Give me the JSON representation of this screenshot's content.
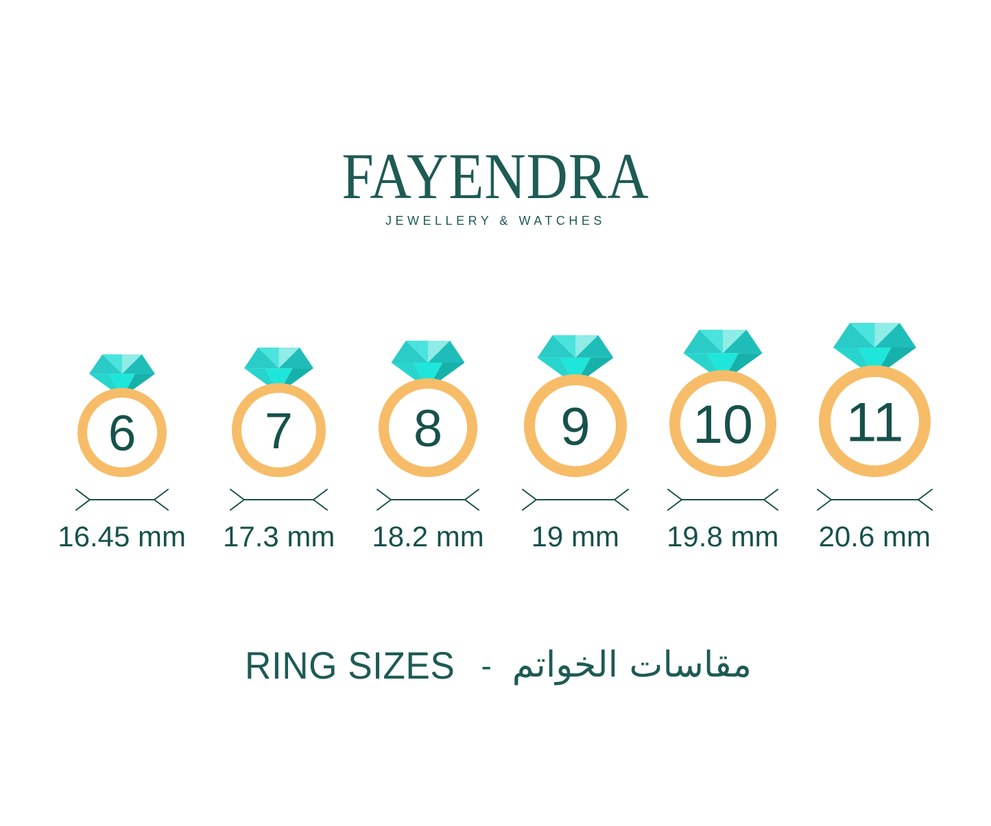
{
  "brand": {
    "name": "FAYENDRA",
    "tagline": "JEWELLERY & WATCHES"
  },
  "rings": [
    {
      "size": "6",
      "diameter_mm": 16.45,
      "label": "16.45 mm"
    },
    {
      "size": "7",
      "diameter_mm": 17.3,
      "label": "17.3 mm"
    },
    {
      "size": "8",
      "diameter_mm": 18.2,
      "label": "18.2 mm"
    },
    {
      "size": "9",
      "diameter_mm": 19,
      "label": "19 mm"
    },
    {
      "size": "10",
      "diameter_mm": 19.8,
      "label": "19.8 mm"
    },
    {
      "size": "11",
      "diameter_mm": 20.6,
      "label": "20.6 mm"
    }
  ],
  "footer": {
    "title_en": "RING SIZES",
    "separator": "-",
    "title_ar": "مقاسات الخواتم"
  },
  "colors": {
    "background": "#FFFFFF",
    "teal_brand": "#1E5B54",
    "teal_dark": "#17514B",
    "gold": "#F7BC68",
    "diamond": {
      "crown_left": "#2BCBC8",
      "crown_center": "#4BE3DD",
      "crown_pale": "#8FECE7",
      "crown_right": "#1FBDB9",
      "pavilion_left": "#28D5CD",
      "pavilion_center": "#1FE6DA",
      "pavilion_right": "#17B1AB"
    }
  }
}
